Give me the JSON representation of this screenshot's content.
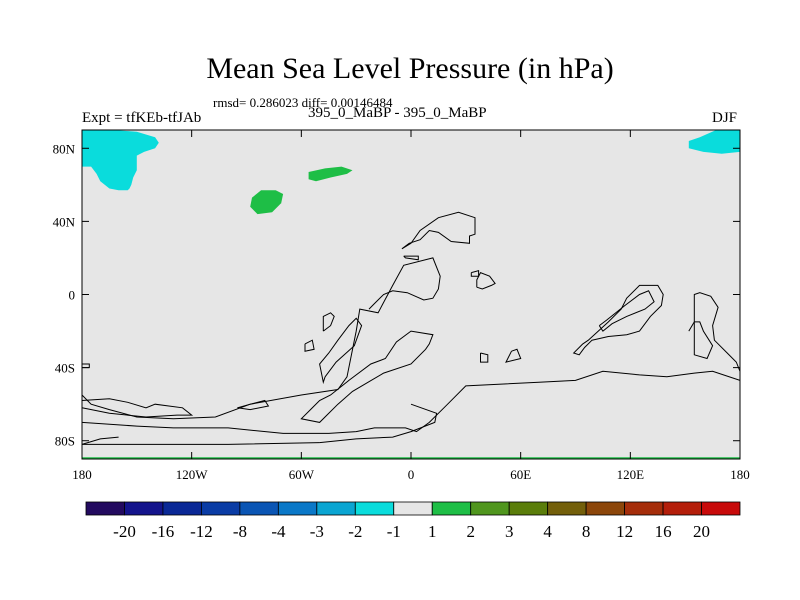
{
  "chart_data": {
    "type": "heatmap",
    "title": "Mean Sea Level Pressure (in hPa)",
    "stats_line": "rmsd= 0.286023 diff= 0.00146484",
    "left_label": "Expt = tfKEb-tfJAb",
    "center_label": "395_0_MaBP - 395_0_MaBP",
    "right_label": "DJF",
    "xlim": [
      -180,
      180
    ],
    "ylim": [
      -90,
      90
    ],
    "x_ticks": [
      {
        "value": -180,
        "label": "180"
      },
      {
        "value": -120,
        "label": "120W"
      },
      {
        "value": -60,
        "label": "60W"
      },
      {
        "value": 0,
        "label": "0"
      },
      {
        "value": 60,
        "label": "60E"
      },
      {
        "value": 120,
        "label": "120E"
      },
      {
        "value": 180,
        "label": "180"
      }
    ],
    "y_ticks": [
      {
        "value": 80,
        "label": "80N"
      },
      {
        "value": 40,
        "label": "40N"
      },
      {
        "value": 0,
        "label": "0"
      },
      {
        "value": -40,
        "label": "40S"
      },
      {
        "value": -80,
        "label": "80S"
      }
    ],
    "background_color": "#e6e6e6",
    "colorbar": {
      "levels": [
        "-20",
        "-16",
        "-12",
        "-8",
        "-4",
        "-3",
        "-2",
        "-1",
        "1",
        "2",
        "3",
        "4",
        "8",
        "12",
        "16",
        "20"
      ],
      "colors": [
        "#230a5f",
        "#14148c",
        "#0a2896",
        "#0a3ca5",
        "#0a55b4",
        "#0a78c8",
        "#0aa5d2",
        "#0adcdc",
        "#e6e6e6",
        "#1ebe46",
        "#50961e",
        "#5a7d0a",
        "#735f0a",
        "#8c460a",
        "#a52d0a",
        "#b41e0a",
        "#c80a0a"
      ]
    },
    "regions": [
      {
        "name": "cyan-region-northwest",
        "color": "#0adcdc",
        "points": [
          [
            -180,
            90
          ],
          [
            -175,
            90
          ],
          [
            -163,
            90
          ],
          [
            -150,
            89
          ],
          [
            -140,
            86
          ],
          [
            -138,
            83
          ],
          [
            -140,
            80
          ],
          [
            -146,
            78
          ],
          [
            -150,
            76
          ],
          [
            -150,
            68
          ],
          [
            -152,
            64
          ],
          [
            -153,
            60
          ],
          [
            -154,
            58
          ],
          [
            -155,
            57
          ],
          [
            -160,
            57
          ],
          [
            -165,
            58
          ],
          [
            -170,
            62
          ],
          [
            -172,
            66
          ],
          [
            -175,
            70
          ],
          [
            -180,
            70
          ]
        ]
      },
      {
        "name": "cyan-region-northeast",
        "color": "#0adcdc",
        "points": [
          [
            180,
            90
          ],
          [
            176,
            90
          ],
          [
            167,
            90
          ],
          [
            158,
            86
          ],
          [
            152,
            84
          ],
          [
            152,
            80
          ],
          [
            160,
            78
          ],
          [
            170,
            77
          ],
          [
            180,
            78
          ]
        ]
      },
      {
        "name": "green-region-north-atlantic",
        "color": "#1ebe46",
        "points": [
          [
            -56,
            67
          ],
          [
            -47,
            69
          ],
          [
            -38,
            70
          ],
          [
            -32,
            68
          ],
          [
            -35,
            66
          ],
          [
            -44,
            64
          ],
          [
            -52,
            62
          ],
          [
            -56,
            63
          ]
        ]
      },
      {
        "name": "green-region-greenland",
        "color": "#1ebe46",
        "points": [
          [
            -88,
            48
          ],
          [
            -84,
            44
          ],
          [
            -76,
            45
          ],
          [
            -71,
            50
          ],
          [
            -70,
            55
          ],
          [
            -74,
            57
          ],
          [
            -82,
            57
          ],
          [
            -87,
            53
          ]
        ]
      },
      {
        "name": "green-strip-south",
        "color": "#1ebe46",
        "points": [
          [
            -180,
            -89
          ],
          [
            180,
            -89
          ],
          [
            180,
            -90
          ],
          [
            -180,
            -90
          ]
        ]
      }
    ],
    "coastlines": [
      [
        [
          -5,
          25
        ],
        [
          0,
          28
        ],
        [
          5,
          35
        ],
        [
          15,
          42
        ],
        [
          26,
          45
        ],
        [
          35,
          42
        ],
        [
          35,
          33
        ],
        [
          32,
          32
        ],
        [
          32,
          28
        ],
        [
          22,
          29
        ],
        [
          15,
          34
        ],
        [
          10,
          35
        ],
        [
          5,
          30
        ],
        [
          -1,
          28
        ],
        [
          -5,
          25
        ]
      ],
      [
        [
          -4,
          21
        ],
        [
          -3,
          20
        ],
        [
          4,
          19
        ],
        [
          4,
          21
        ],
        [
          -4,
          21
        ]
      ],
      [
        [
          33,
          12
        ],
        [
          37,
          13
        ],
        [
          37,
          10
        ],
        [
          33,
          10
        ],
        [
          33,
          12
        ]
      ],
      [
        [
          36,
          4
        ],
        [
          39,
          3
        ],
        [
          44,
          5
        ],
        [
          46,
          6
        ],
        [
          43,
          10
        ],
        [
          38,
          12
        ],
        [
          36,
          8
        ],
        [
          36,
          4
        ]
      ],
      [
        [
          -23,
          -8
        ],
        [
          -20,
          -5
        ],
        [
          -15,
          0
        ],
        [
          -10,
          2
        ],
        [
          -2,
          1
        ],
        [
          7,
          -3
        ],
        [
          12,
          -2
        ],
        [
          15,
          3
        ],
        [
          16,
          10
        ],
        [
          12,
          20
        ],
        [
          -4,
          16
        ],
        [
          -10,
          5
        ],
        [
          -18,
          -10
        ],
        [
          -28,
          -8
        ],
        [
          -30,
          -20
        ],
        [
          -35,
          -45
        ],
        [
          -40,
          -52
        ],
        [
          -60,
          -55
        ],
        [
          -88,
          -60
        ],
        [
          -107,
          -67
        ],
        [
          -130,
          -68
        ],
        [
          -150,
          -67
        ],
        [
          -165,
          -63
        ],
        [
          -175,
          -60
        ],
        [
          -180,
          -55
        ]
      ],
      [
        [
          -180,
          -58
        ],
        [
          -165,
          -57
        ],
        [
          -155,
          -59
        ],
        [
          -145,
          -62
        ],
        [
          -140,
          -60
        ],
        [
          -125,
          -62
        ],
        [
          -120,
          -66
        ],
        [
          -128,
          -66
        ],
        [
          -145,
          -67
        ],
        [
          -165,
          -65
        ],
        [
          -180,
          -62
        ]
      ],
      [
        [
          -95,
          -62
        ],
        [
          -88,
          -60
        ],
        [
          -80,
          -58
        ],
        [
          -78,
          -61
        ],
        [
          -88,
          -63
        ],
        [
          -95,
          -62
        ]
      ],
      [
        [
          -48,
          -20
        ],
        [
          -44,
          -17
        ],
        [
          -42,
          -12
        ],
        [
          -44,
          -10
        ],
        [
          -48,
          -12
        ],
        [
          -48,
          -20
        ]
      ],
      [
        [
          -47,
          -45
        ],
        [
          -41,
          -37
        ],
        [
          -31,
          -28
        ],
        [
          -27,
          -17
        ],
        [
          -30,
          -13
        ],
        [
          -34,
          -17
        ],
        [
          -40,
          -25
        ],
        [
          -45,
          -32
        ],
        [
          -50,
          -38
        ],
        [
          -48,
          -48
        ],
        [
          -47,
          -45
        ]
      ],
      [
        [
          -40,
          -60
        ],
        [
          -32,
          -53
        ],
        [
          -15,
          -43
        ],
        [
          0,
          -38
        ],
        [
          8,
          -30
        ],
        [
          10,
          -27
        ],
        [
          12,
          -22
        ],
        [
          0,
          -20
        ],
        [
          -8,
          -26
        ],
        [
          -14,
          -35
        ],
        [
          -22,
          -38
        ],
        [
          -34,
          -47
        ],
        [
          -44,
          -55
        ],
        [
          -50,
          -58
        ],
        [
          -55,
          -63
        ],
        [
          -60,
          -68
        ],
        [
          -50,
          -70
        ],
        [
          -40,
          -60
        ]
      ],
      [
        [
          -180,
          -70
        ],
        [
          -150,
          -72
        ],
        [
          -130,
          -73
        ],
        [
          -100,
          -73
        ],
        [
          -70,
          -76
        ],
        [
          -45,
          -76
        ],
        [
          -30,
          -75
        ],
        [
          -20,
          -73
        ],
        [
          -3,
          -73
        ],
        [
          3,
          -75
        ],
        [
          10,
          -70
        ],
        [
          20,
          -60
        ],
        [
          30,
          -50
        ],
        [
          70,
          -48
        ],
        [
          90,
          -47
        ],
        [
          105,
          -42
        ],
        [
          125,
          -44
        ],
        [
          140,
          -45
        ],
        [
          155,
          -43
        ],
        [
          165,
          -42
        ],
        [
          180,
          -47
        ]
      ],
      [
        [
          -50,
          -81
        ],
        [
          -40,
          -80
        ],
        [
          -30,
          -79
        ],
        [
          -10,
          -78
        ],
        [
          0,
          -75
        ],
        [
          13,
          -70
        ],
        [
          14,
          -65
        ],
        [
          0,
          -60
        ]
      ],
      [
        [
          -180,
          -82
        ],
        [
          -100,
          -82
        ],
        [
          -50,
          -81
        ]
      ],
      [
        [
          -180,
          -82
        ],
        [
          -170,
          -79
        ],
        [
          -160,
          -78
        ]
      ],
      [
        [
          -180,
          -40
        ],
        [
          -176,
          -40
        ],
        [
          -176,
          -38
        ],
        [
          -180,
          -38
        ]
      ],
      [
        [
          94,
          -27
        ],
        [
          97,
          -25
        ],
        [
          108,
          -15
        ],
        [
          115,
          -8
        ],
        [
          118,
          -2
        ],
        [
          125,
          5
        ],
        [
          135,
          5
        ],
        [
          138,
          0
        ],
        [
          137,
          -6
        ],
        [
          131,
          -12
        ],
        [
          125,
          -20
        ],
        [
          118,
          -22
        ],
        [
          108,
          -23
        ],
        [
          99,
          -25
        ],
        [
          95,
          -29
        ],
        [
          92,
          -33
        ],
        [
          89,
          -32
        ],
        [
          94,
          -27
        ]
      ],
      [
        [
          103,
          -17
        ],
        [
          107,
          -14
        ],
        [
          117,
          -6
        ],
        [
          125,
          0
        ],
        [
          130,
          2
        ],
        [
          133,
          -4
        ],
        [
          128,
          -8
        ],
        [
          118,
          -12
        ],
        [
          110,
          -16
        ],
        [
          105,
          -20
        ],
        [
          103,
          -17
        ]
      ],
      [
        [
          152,
          -20
        ],
        [
          155,
          -15
        ],
        [
          155,
          0
        ],
        [
          158,
          1
        ],
        [
          164,
          -1
        ],
        [
          168,
          -7
        ],
        [
          165,
          -17
        ],
        [
          166,
          -25
        ],
        [
          173,
          -32
        ],
        [
          178,
          -37
        ],
        [
          180,
          -42
        ]
      ],
      [
        [
          155,
          -15
        ],
        [
          155,
          -33
        ],
        [
          162,
          -35
        ],
        [
          165,
          -28
        ],
        [
          160,
          -20
        ],
        [
          158,
          -15
        ],
        [
          155,
          -15
        ]
      ],
      [
        [
          55,
          -31
        ],
        [
          58,
          -30
        ],
        [
          60,
          -35
        ],
        [
          52,
          -37
        ],
        [
          55,
          -31
        ]
      ],
      [
        [
          38,
          -32
        ],
        [
          42,
          -33
        ],
        [
          42,
          -37
        ],
        [
          38,
          -37
        ],
        [
          38,
          -32
        ]
      ],
      [
        [
          -58,
          -27
        ],
        [
          -54,
          -25
        ],
        [
          -53,
          -30
        ],
        [
          -58,
          -31
        ],
        [
          -58,
          -27
        ]
      ]
    ]
  }
}
